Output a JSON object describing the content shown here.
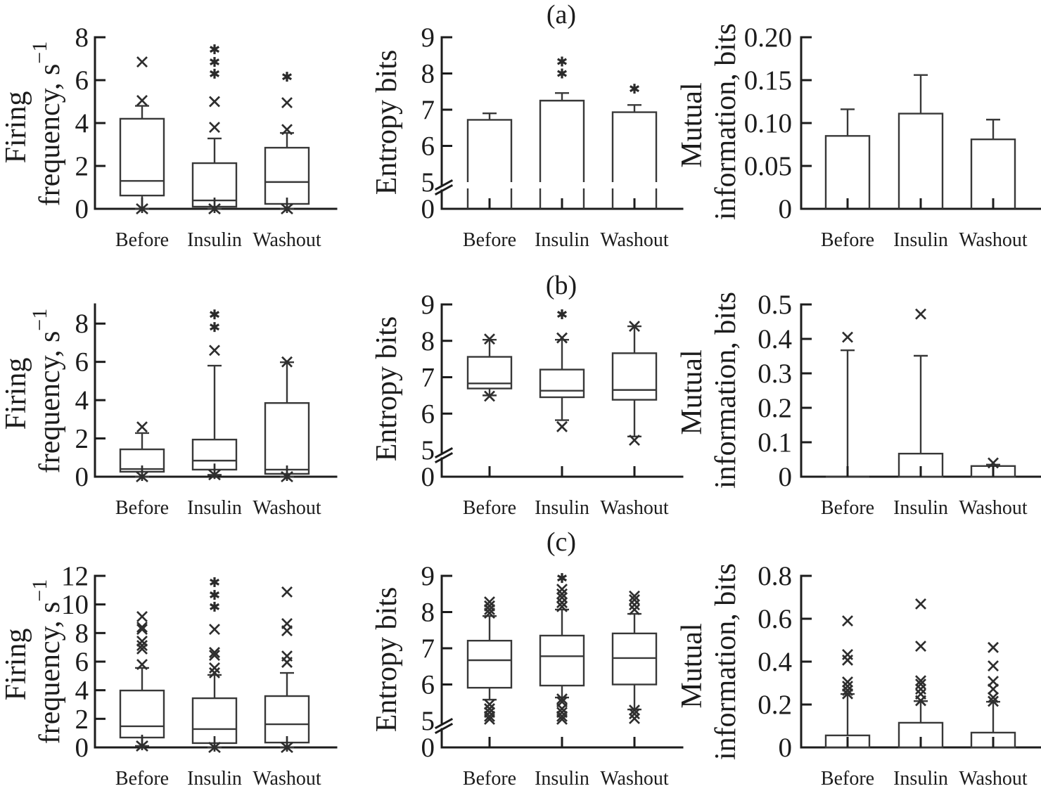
{
  "figure": {
    "panel_labels": [
      "(a)",
      "(b)",
      "(c)"
    ]
  },
  "chart_data": [
    {
      "panel": "(a)",
      "type": "box",
      "title": "",
      "ylabel": [
        {
          "text": "Firing"
        },
        {
          "text": "frequency, s",
          "sup": "−1"
        }
      ],
      "xlabel": "",
      "ylim": [
        0,
        8
      ],
      "yticks": [
        0,
        2,
        4,
        6,
        8
      ],
      "ytick_labels": [
        "0",
        "2",
        "4",
        "6",
        "8"
      ],
      "categories": [
        "Before",
        "Insulin",
        "Washout"
      ],
      "series": [
        {
          "q1": 0.62,
          "median": 1.3,
          "q3": 4.2,
          "whisker_low": 0,
          "whisker_high": 4.8,
          "markers": [
            {
              "t": "x",
              "v": 6.85
            },
            {
              "t": "x",
              "v": 5.05
            },
            {
              "t": "star",
              "v": 0
            }
          ]
        },
        {
          "q1": 0.1,
          "median": 0.39,
          "q3": 2.13,
          "whisker_low": 0,
          "whisker_high": 3.28,
          "markers": [
            {
              "t": "asterisk",
              "v": 7.44
            },
            {
              "t": "asterisk",
              "v": 6.85
            },
            {
              "t": "asterisk",
              "v": 6.3
            },
            {
              "t": "x",
              "v": 5.0
            },
            {
              "t": "x",
              "v": 3.8
            },
            {
              "t": "star",
              "v": 0
            }
          ]
        },
        {
          "q1": 0.23,
          "median": 1.25,
          "q3": 2.85,
          "whisker_low": 0,
          "whisker_high": 3.54,
          "markers": [
            {
              "t": "asterisk",
              "v": 6.16
            },
            {
              "t": "x",
              "v": 4.95
            },
            {
              "t": "x",
              "v": 3.7
            },
            {
              "t": "star",
              "v": 0
            }
          ]
        }
      ]
    },
    {
      "panel": "(a)",
      "type": "bar",
      "title": "",
      "ylabel": [
        {
          "text": "Entropy bits"
        }
      ],
      "xlabel": "",
      "ylim": [
        0,
        9
      ],
      "axis_break": [
        0,
        5
      ],
      "yticks": [
        0,
        5,
        6,
        7,
        8,
        9
      ],
      "ytick_labels": [
        "0",
        "5",
        "6",
        "7",
        "8",
        "9"
      ],
      "categories": [
        "Before",
        "Insulin",
        "Washout"
      ],
      "series": [
        {
          "value": 6.72,
          "error_high": 6.9,
          "markers": []
        },
        {
          "value": 7.25,
          "error_high": 7.46,
          "markers": [
            {
              "t": "asterisk",
              "v": 8.33
            },
            {
              "t": "asterisk",
              "v": 8.0
            }
          ]
        },
        {
          "value": 6.93,
          "error_high": 7.13,
          "markers": [
            {
              "t": "asterisk",
              "v": 7.58
            }
          ]
        }
      ]
    },
    {
      "panel": "(a)",
      "type": "bar",
      "title": "",
      "ylabel": [
        {
          "text": "Mutual"
        },
        {
          "text": "information, bits"
        }
      ],
      "xlabel": "",
      "ylim": [
        0,
        0.2
      ],
      "yticks": [
        0,
        0.05,
        0.1,
        0.15,
        0.2
      ],
      "ytick_labels": [
        "0",
        "0.05",
        "0.10",
        "0.15",
        "0.20"
      ],
      "categories": [
        "Before",
        "Insulin",
        "Washout"
      ],
      "series": [
        {
          "value": 0.085,
          "error_high": 0.116,
          "markers": []
        },
        {
          "value": 0.111,
          "error_high": 0.156,
          "markers": []
        },
        {
          "value": 0.081,
          "error_high": 0.104,
          "markers": []
        }
      ]
    },
    {
      "panel": "(b)",
      "type": "box",
      "title": "",
      "ylabel": [
        {
          "text": "Firing"
        },
        {
          "text": "frequency, s",
          "sup": "−1"
        }
      ],
      "xlabel": "",
      "ylim": [
        0,
        9
      ],
      "yticks": [
        0,
        2,
        4,
        6,
        8
      ],
      "ytick_labels": [
        "0",
        "2",
        "4",
        "6",
        "8"
      ],
      "categories": [
        "Before",
        "Insulin",
        "Washout"
      ],
      "series": [
        {
          "q1": 0.26,
          "median": 0.4,
          "q3": 1.43,
          "whisker_low": 0,
          "whisker_high": 2.28,
          "markers": [
            {
              "t": "x",
              "v": 2.6
            },
            {
              "t": "star",
              "v": 0
            }
          ]
        },
        {
          "q1": 0.37,
          "median": 0.84,
          "q3": 1.94,
          "whisker_low": 0.1,
          "whisker_high": 5.8,
          "markers": [
            {
              "t": "asterisk",
              "v": 8.48
            },
            {
              "t": "asterisk",
              "v": 7.82
            },
            {
              "t": "x",
              "v": 6.6
            },
            {
              "t": "star",
              "v": 0.1
            }
          ]
        },
        {
          "q1": 0.15,
          "median": 0.37,
          "q3": 3.85,
          "whisker_low": 0,
          "whisker_high": 5.98,
          "markers": [
            {
              "t": "x",
              "v": 6.0
            },
            {
              "t": "star",
              "v": 0
            }
          ]
        }
      ]
    },
    {
      "panel": "(b)",
      "type": "box",
      "title": "",
      "ylabel": [
        {
          "text": "Entropy bits"
        }
      ],
      "xlabel": "",
      "ylim": [
        0,
        9
      ],
      "axis_break": [
        0,
        5
      ],
      "yticks": [
        0,
        5,
        6,
        7,
        8,
        9
      ],
      "ytick_labels": [
        "0",
        "5",
        "6",
        "7",
        "8",
        "9"
      ],
      "categories": [
        "Before",
        "Insulin",
        "Washout"
      ],
      "series": [
        {
          "q1": 6.69,
          "median": 6.83,
          "q3": 7.56,
          "whisker_low": 6.5,
          "whisker_high": 8.03,
          "markers": [
            {
              "t": "x",
              "v": 8.05
            },
            {
              "t": "x",
              "v": 6.48
            }
          ]
        },
        {
          "q1": 6.45,
          "median": 6.63,
          "q3": 7.21,
          "whisker_low": 5.82,
          "whisker_high": 8.03,
          "markers": [
            {
              "t": "asterisk",
              "v": 8.73
            },
            {
              "t": "x",
              "v": 8.08
            },
            {
              "t": "x",
              "v": 5.64
            }
          ]
        },
        {
          "q1": 6.38,
          "median": 6.65,
          "q3": 7.66,
          "whisker_low": 5.37,
          "whisker_high": 8.4,
          "markers": [
            {
              "t": "x",
              "v": 8.4
            },
            {
              "t": "x",
              "v": 5.27
            }
          ]
        }
      ]
    },
    {
      "panel": "(b)",
      "type": "box",
      "title": "",
      "ylabel": [
        {
          "text": "Mutual"
        },
        {
          "text": "information, bits"
        }
      ],
      "xlabel": "",
      "ylim": [
        0,
        0.5
      ],
      "yticks": [
        0,
        0.1,
        0.2,
        0.3,
        0.4,
        0.5
      ],
      "ytick_labels": [
        "0",
        "0.1",
        "0.2",
        "0.3",
        "0.4",
        "0.5"
      ],
      "categories": [
        "Before",
        "Insulin",
        "Washout"
      ],
      "series": [
        {
          "q1": 0,
          "median": 0,
          "q3": 0,
          "whisker_low": 0,
          "whisker_high": 0.367,
          "markers": [
            {
              "t": "x",
              "v": 0.405
            }
          ]
        },
        {
          "q1": 0,
          "median": 0,
          "q3": 0.067,
          "whisker_low": 0,
          "whisker_high": 0.351,
          "markers": [
            {
              "t": "x",
              "v": 0.472
            }
          ]
        },
        {
          "q1": 0,
          "median": 0,
          "q3": 0.031,
          "whisker_low": 0,
          "whisker_high": 0.035,
          "markers": [
            {
              "t": "x",
              "v": 0.04
            }
          ]
        }
      ]
    },
    {
      "panel": "(c)",
      "type": "box",
      "title": "",
      "ylabel": [
        {
          "text": "Firing"
        },
        {
          "text": "frequency, s",
          "sup": "−1"
        }
      ],
      "xlabel": "",
      "ylim": [
        0,
        12
      ],
      "yticks": [
        0,
        2,
        4,
        6,
        8,
        10,
        12
      ],
      "ytick_labels": [
        "0",
        "2",
        "4",
        "6",
        "8",
        "10",
        "12"
      ],
      "categories": [
        "Before",
        "Insulin",
        "Washout"
      ],
      "series": [
        {
          "q1": 0.69,
          "median": 1.48,
          "q3": 3.98,
          "whisker_low": 0.1,
          "whisker_high": 5.56,
          "markers": [
            {
              "t": "x",
              "v": 9.15
            },
            {
              "t": "x",
              "v": 8.41
            },
            {
              "t": "x",
              "v": 8.26
            },
            {
              "t": "x",
              "v": 7.43
            },
            {
              "t": "x",
              "v": 7.13
            },
            {
              "t": "x",
              "v": 6.89
            },
            {
              "t": "x",
              "v": 5.8
            },
            {
              "t": "star",
              "v": 0.1
            }
          ]
        },
        {
          "q1": 0.3,
          "median": 1.28,
          "q3": 3.44,
          "whisker_low": 0,
          "whisker_high": 5.07,
          "markers": [
            {
              "t": "asterisk",
              "v": 11.56
            },
            {
              "t": "asterisk",
              "v": 10.67
            },
            {
              "t": "asterisk",
              "v": 9.84
            },
            {
              "t": "x",
              "v": 8.26
            },
            {
              "t": "x",
              "v": 6.64
            },
            {
              "t": "x",
              "v": 6.44
            },
            {
              "t": "x",
              "v": 5.56
            },
            {
              "t": "x",
              "v": 5.22
            },
            {
              "t": "star",
              "v": 0
            }
          ]
        },
        {
          "q1": 0.34,
          "median": 1.62,
          "q3": 3.59,
          "whisker_low": 0,
          "whisker_high": 5.21,
          "markers": [
            {
              "t": "x",
              "v": 10.87
            },
            {
              "t": "x",
              "v": 8.66
            },
            {
              "t": "x",
              "v": 8.16
            },
            {
              "t": "x",
              "v": 6.39
            },
            {
              "t": "x",
              "v": 5.95
            },
            {
              "t": "star",
              "v": 0
            }
          ]
        }
      ]
    },
    {
      "panel": "(c)",
      "type": "box",
      "title": "",
      "ylabel": [
        {
          "text": "Entropy bits"
        }
      ],
      "xlabel": "",
      "ylim": [
        0,
        9
      ],
      "axis_break": [
        0,
        5
      ],
      "yticks": [
        0,
        5,
        6,
        7,
        8,
        9
      ],
      "ytick_labels": [
        "0",
        "5",
        "6",
        "7",
        "8",
        "9"
      ],
      "categories": [
        "Before",
        "Insulin",
        "Washout"
      ],
      "series": [
        {
          "q1": 5.91,
          "median": 6.67,
          "q3": 7.21,
          "whisker_low": 5.58,
          "whisker_high": 7.89,
          "markers": [
            {
              "t": "x",
              "v": 8.28
            },
            {
              "t": "x",
              "v": 8.17
            },
            {
              "t": "x",
              "v": 8.07
            },
            {
              "t": "x",
              "v": 7.97
            },
            {
              "t": "x",
              "v": 5.45
            },
            {
              "t": "x",
              "v": 5.33
            },
            {
              "t": "x",
              "v": 5.23
            },
            {
              "t": "x",
              "v": 5.12
            },
            {
              "t": "x",
              "v": 5.04
            }
          ]
        },
        {
          "q1": 5.97,
          "median": 6.78,
          "q3": 7.35,
          "whisker_low": 5.64,
          "whisker_high": 8.07,
          "markers": [
            {
              "t": "asterisk",
              "v": 8.94
            },
            {
              "t": "x",
              "v": 8.63
            },
            {
              "t": "x",
              "v": 8.5
            },
            {
              "t": "x",
              "v": 8.4
            },
            {
              "t": "x",
              "v": 8.26
            },
            {
              "t": "x",
              "v": 8.15
            },
            {
              "t": "x",
              "v": 5.6
            },
            {
              "t": "x",
              "v": 5.52
            },
            {
              "t": "x",
              "v": 5.33
            },
            {
              "t": "x",
              "v": 5.23
            },
            {
              "t": "x",
              "v": 5.12
            },
            {
              "t": "x",
              "v": 5.04
            }
          ]
        },
        {
          "q1": 6.0,
          "median": 6.73,
          "q3": 7.41,
          "whisker_low": 5.31,
          "whisker_high": 7.95,
          "markers": [
            {
              "t": "x",
              "v": 8.44
            },
            {
              "t": "x",
              "v": 8.34
            },
            {
              "t": "x",
              "v": 8.2
            },
            {
              "t": "x",
              "v": 8.07
            },
            {
              "t": "x",
              "v": 5.29
            },
            {
              "t": "x",
              "v": 5.19
            },
            {
              "t": "x",
              "v": 5.06
            }
          ]
        }
      ]
    },
    {
      "panel": "(c)",
      "type": "box",
      "title": "",
      "ylabel": [
        {
          "text": "Mutual"
        },
        {
          "text": "information, bits"
        }
      ],
      "xlabel": "",
      "ylim": [
        0,
        0.8
      ],
      "yticks": [
        0,
        0.2,
        0.4,
        0.6,
        0.8
      ],
      "ytick_labels": [
        "0",
        "0.2",
        "0.4",
        "0.6",
        "0.8"
      ],
      "categories": [
        "Before",
        "Insulin",
        "Washout"
      ],
      "series": [
        {
          "q1": 0,
          "median": 0,
          "q3": 0.056,
          "whisker_low": 0,
          "whisker_high": 0.249,
          "markers": [
            {
              "t": "x",
              "v": 0.59
            },
            {
              "t": "x",
              "v": 0.433
            },
            {
              "t": "x",
              "v": 0.407
            },
            {
              "t": "x",
              "v": 0.305
            },
            {
              "t": "x",
              "v": 0.285
            },
            {
              "t": "x",
              "v": 0.266
            },
            {
              "t": "x",
              "v": 0.25
            }
          ]
        },
        {
          "q1": 0,
          "median": 0,
          "q3": 0.115,
          "whisker_low": 0,
          "whisker_high": 0.216,
          "markers": [
            {
              "t": "x",
              "v": 0.669
            },
            {
              "t": "x",
              "v": 0.472
            },
            {
              "t": "x",
              "v": 0.311
            },
            {
              "t": "x",
              "v": 0.295
            },
            {
              "t": "x",
              "v": 0.272
            },
            {
              "t": "x",
              "v": 0.249
            },
            {
              "t": "x",
              "v": 0.218
            }
          ]
        },
        {
          "q1": 0,
          "median": 0,
          "q3": 0.069,
          "whisker_low": 0,
          "whisker_high": 0.213,
          "markers": [
            {
              "t": "x",
              "v": 0.466
            },
            {
              "t": "x",
              "v": 0.38
            },
            {
              "t": "x",
              "v": 0.308
            },
            {
              "t": "x",
              "v": 0.272
            },
            {
              "t": "x",
              "v": 0.233
            },
            {
              "t": "x",
              "v": 0.215
            }
          ]
        }
      ]
    }
  ]
}
